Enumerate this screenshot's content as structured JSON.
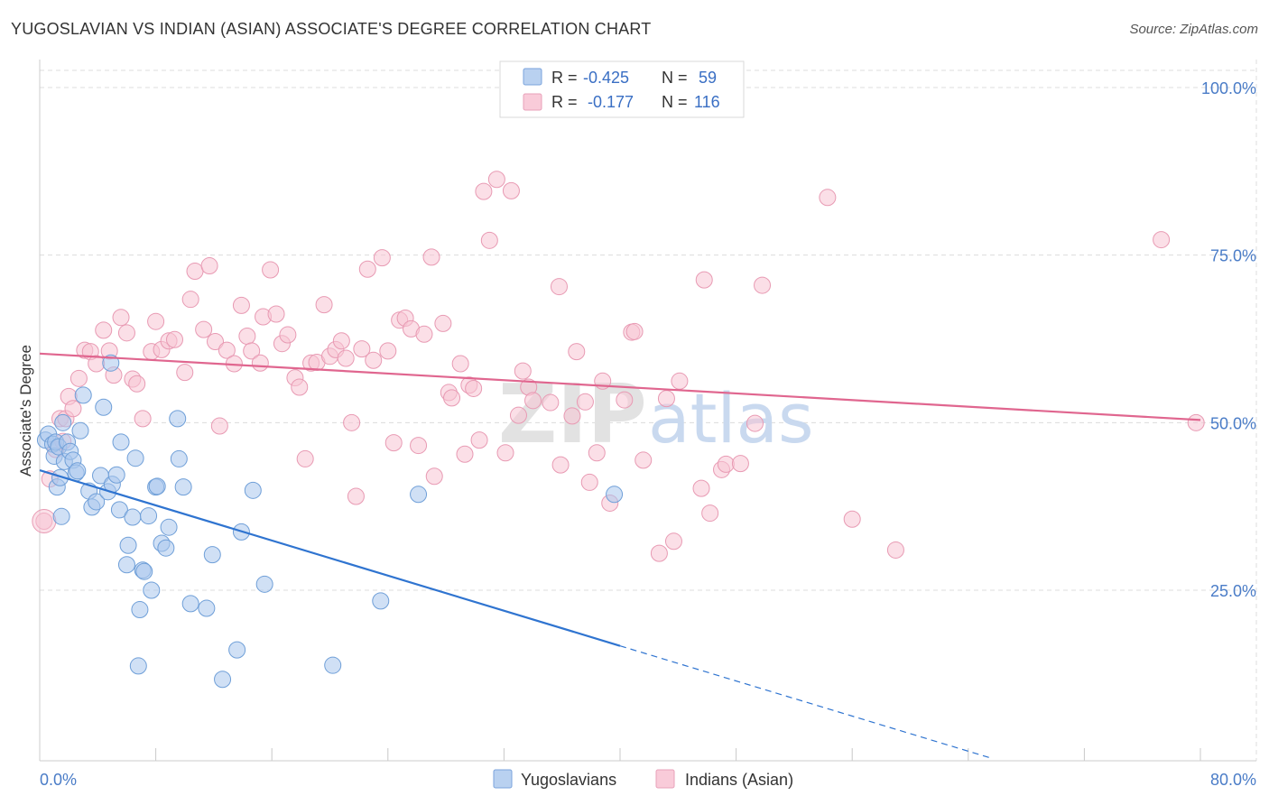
{
  "header": {
    "title": "YUGOSLAVIAN VS INDIAN (ASIAN) ASSOCIATE'S DEGREE CORRELATION CHART",
    "source": "Source: ZipAtlas.com"
  },
  "watermark": {
    "part1": "ZIP",
    "part2": "atlas"
  },
  "legend": {
    "rows": [
      {
        "r_label": "R =",
        "r_value": "-0.425",
        "n_label": "N =",
        "n_value": "59",
        "color": "#9dbde8"
      },
      {
        "r_label": "R =",
        "r_value": "-0.177",
        "n_label": "N =",
        "n_value": "116",
        "color": "#f4b3c6"
      }
    ]
  },
  "bottom_legend": {
    "items": [
      {
        "label": "Yugoslavians",
        "color": "#9dbde8"
      },
      {
        "label": "Indians (Asian)",
        "color": "#f4b3c6"
      }
    ]
  },
  "colors": {
    "blue_fill": "#a9c7ec",
    "blue_stroke": "#6f9fd8",
    "blue_line": "#2f74d0",
    "pink_fill": "#f7c4d3",
    "pink_stroke": "#e89ab3",
    "pink_line": "#e0668f",
    "grid": "#dcdcdc"
  },
  "chart_data": {
    "type": "scatter",
    "title": "YUGOSLAVIAN VS INDIAN (ASIAN) ASSOCIATE'S DEGREE CORRELATION CHART",
    "xlabel": "",
    "ylabel": "Associate's Degree",
    "xlim": [
      0,
      80
    ],
    "ylim": [
      0,
      105
    ],
    "x_tick_labels": [
      "0.0%",
      "80.0%"
    ],
    "y_ticks": [
      25,
      50,
      75,
      100
    ],
    "y_tick_labels": [
      "25.0%",
      "50.0%",
      "75.0%",
      "100.0%"
    ],
    "grid": true,
    "legend_position": "top-center",
    "series": [
      {
        "name": "Yugoslavians",
        "R": -0.425,
        "N": 59,
        "trend": {
          "x_start": 0,
          "y_start": 42.9,
          "x_solid_end": 40,
          "x_end": 80,
          "y_end": -9.5
        },
        "points": [
          [
            0.4,
            47.4
          ],
          [
            0.6,
            48.3
          ],
          [
            0.9,
            46.8
          ],
          [
            1.0,
            45.0
          ],
          [
            1.1,
            47.1
          ],
          [
            1.2,
            40.4
          ],
          [
            1.3,
            46.4
          ],
          [
            1.4,
            41.8
          ],
          [
            1.5,
            36.0
          ],
          [
            1.6,
            50.0
          ],
          [
            1.7,
            44.2
          ],
          [
            1.9,
            47.1
          ],
          [
            2.1,
            45.7
          ],
          [
            2.3,
            44.4
          ],
          [
            2.5,
            42.5
          ],
          [
            2.6,
            42.8
          ],
          [
            2.8,
            48.8
          ],
          [
            3.0,
            54.1
          ],
          [
            3.4,
            39.8
          ],
          [
            3.6,
            37.4
          ],
          [
            3.9,
            38.2
          ],
          [
            4.2,
            42.1
          ],
          [
            4.4,
            52.3
          ],
          [
            4.7,
            39.7
          ],
          [
            5.0,
            40.8
          ],
          [
            5.3,
            42.2
          ],
          [
            5.5,
            37.0
          ],
          [
            5.6,
            47.1
          ],
          [
            6.0,
            28.8
          ],
          [
            6.1,
            31.7
          ],
          [
            6.4,
            35.9
          ],
          [
            6.6,
            44.7
          ],
          [
            6.8,
            13.7
          ],
          [
            6.9,
            22.1
          ],
          [
            7.1,
            28.0
          ],
          [
            7.2,
            27.8
          ],
          [
            7.5,
            36.1
          ],
          [
            7.7,
            25.0
          ],
          [
            8.0,
            40.4
          ],
          [
            8.4,
            32.0
          ],
          [
            8.7,
            31.3
          ],
          [
            8.9,
            34.4
          ],
          [
            9.5,
            50.6
          ],
          [
            9.6,
            44.6
          ],
          [
            9.9,
            40.4
          ],
          [
            10.4,
            23.0
          ],
          [
            11.5,
            22.3
          ],
          [
            11.9,
            30.3
          ],
          [
            12.6,
            11.7
          ],
          [
            13.6,
            16.1
          ],
          [
            13.9,
            33.7
          ],
          [
            14.7,
            39.9
          ],
          [
            15.5,
            25.9
          ],
          [
            20.2,
            13.8
          ],
          [
            23.5,
            23.4
          ],
          [
            26.1,
            39.3
          ],
          [
            39.6,
            39.3
          ],
          [
            4.9,
            58.9
          ],
          [
            8.1,
            40.5
          ]
        ]
      },
      {
        "name": "Indians (Asian)",
        "R": -0.177,
        "N": 116,
        "trend": {
          "x_start": 0,
          "y_start": 60.3,
          "x_end": 80,
          "y_end": 50.4
        },
        "points": [
          [
            0.3,
            35.3
          ],
          [
            0.7,
            41.6
          ],
          [
            1.1,
            46.0
          ],
          [
            1.4,
            50.6
          ],
          [
            1.6,
            47.2
          ],
          [
            1.8,
            50.6
          ],
          [
            2.0,
            53.9
          ],
          [
            2.3,
            52.1
          ],
          [
            2.7,
            56.6
          ],
          [
            3.1,
            60.8
          ],
          [
            3.5,
            60.6
          ],
          [
            3.9,
            58.8
          ],
          [
            4.4,
            63.8
          ],
          [
            4.8,
            60.7
          ],
          [
            5.1,
            57.1
          ],
          [
            5.6,
            65.7
          ],
          [
            6.0,
            63.4
          ],
          [
            6.4,
            56.5
          ],
          [
            6.7,
            55.8
          ],
          [
            7.1,
            50.6
          ],
          [
            7.7,
            60.6
          ],
          [
            8.0,
            65.1
          ],
          [
            8.4,
            60.9
          ],
          [
            8.9,
            62.2
          ],
          [
            9.3,
            62.4
          ],
          [
            10.0,
            57.5
          ],
          [
            10.4,
            68.4
          ],
          [
            10.7,
            72.6
          ],
          [
            11.3,
            63.9
          ],
          [
            11.7,
            73.4
          ],
          [
            12.1,
            62.1
          ],
          [
            12.4,
            49.5
          ],
          [
            12.9,
            60.8
          ],
          [
            13.4,
            58.8
          ],
          [
            13.9,
            67.5
          ],
          [
            14.3,
            62.9
          ],
          [
            14.6,
            60.7
          ],
          [
            15.2,
            58.9
          ],
          [
            15.4,
            65.8
          ],
          [
            15.9,
            72.8
          ],
          [
            16.3,
            66.2
          ],
          [
            16.7,
            61.8
          ],
          [
            17.1,
            63.1
          ],
          [
            17.6,
            56.7
          ],
          [
            17.9,
            55.3
          ],
          [
            18.3,
            44.6
          ],
          [
            18.7,
            58.9
          ],
          [
            19.1,
            59.0
          ],
          [
            19.6,
            67.6
          ],
          [
            20.0,
            59.9
          ],
          [
            20.4,
            60.9
          ],
          [
            20.8,
            62.2
          ],
          [
            21.1,
            59.6
          ],
          [
            21.5,
            50.0
          ],
          [
            21.8,
            39.0
          ],
          [
            22.2,
            61.0
          ],
          [
            22.6,
            72.9
          ],
          [
            23.0,
            59.3
          ],
          [
            23.6,
            74.6
          ],
          [
            24.0,
            60.7
          ],
          [
            24.4,
            47.0
          ],
          [
            24.8,
            65.3
          ],
          [
            25.2,
            65.6
          ],
          [
            25.6,
            64.0
          ],
          [
            26.1,
            46.6
          ],
          [
            26.5,
            63.2
          ],
          [
            27.0,
            74.7
          ],
          [
            27.2,
            42.0
          ],
          [
            27.8,
            64.8
          ],
          [
            28.2,
            54.5
          ],
          [
            28.4,
            53.7
          ],
          [
            29.0,
            58.8
          ],
          [
            29.3,
            45.3
          ],
          [
            29.6,
            55.6
          ],
          [
            29.9,
            55.1
          ],
          [
            30.3,
            47.4
          ],
          [
            30.6,
            84.5
          ],
          [
            31.0,
            77.2
          ],
          [
            31.5,
            86.3
          ],
          [
            32.1,
            45.5
          ],
          [
            32.5,
            84.6
          ],
          [
            33.0,
            51.1
          ],
          [
            33.3,
            57.7
          ],
          [
            33.7,
            55.3
          ],
          [
            34.0,
            53.3
          ],
          [
            35.2,
            53.0
          ],
          [
            35.8,
            70.3
          ],
          [
            35.9,
            43.7
          ],
          [
            36.7,
            51.0
          ],
          [
            37.0,
            60.6
          ],
          [
            37.6,
            53.1
          ],
          [
            37.9,
            41.1
          ],
          [
            38.4,
            45.5
          ],
          [
            38.8,
            56.2
          ],
          [
            39.3,
            38.0
          ],
          [
            40.3,
            53.4
          ],
          [
            40.8,
            63.5
          ],
          [
            41.0,
            63.6
          ],
          [
            41.6,
            44.4
          ],
          [
            42.7,
            30.5
          ],
          [
            43.2,
            53.6
          ],
          [
            43.7,
            32.3
          ],
          [
            44.1,
            56.2
          ],
          [
            45.6,
            40.2
          ],
          [
            45.8,
            71.3
          ],
          [
            46.2,
            36.5
          ],
          [
            47.0,
            43.0
          ],
          [
            47.3,
            43.8
          ],
          [
            48.3,
            43.9
          ],
          [
            49.3,
            49.9
          ],
          [
            49.8,
            70.5
          ],
          [
            54.3,
            83.6
          ],
          [
            56.0,
            35.6
          ],
          [
            59.0,
            31.0
          ],
          [
            77.3,
            77.3
          ],
          [
            79.7,
            50.0
          ]
        ]
      }
    ]
  }
}
